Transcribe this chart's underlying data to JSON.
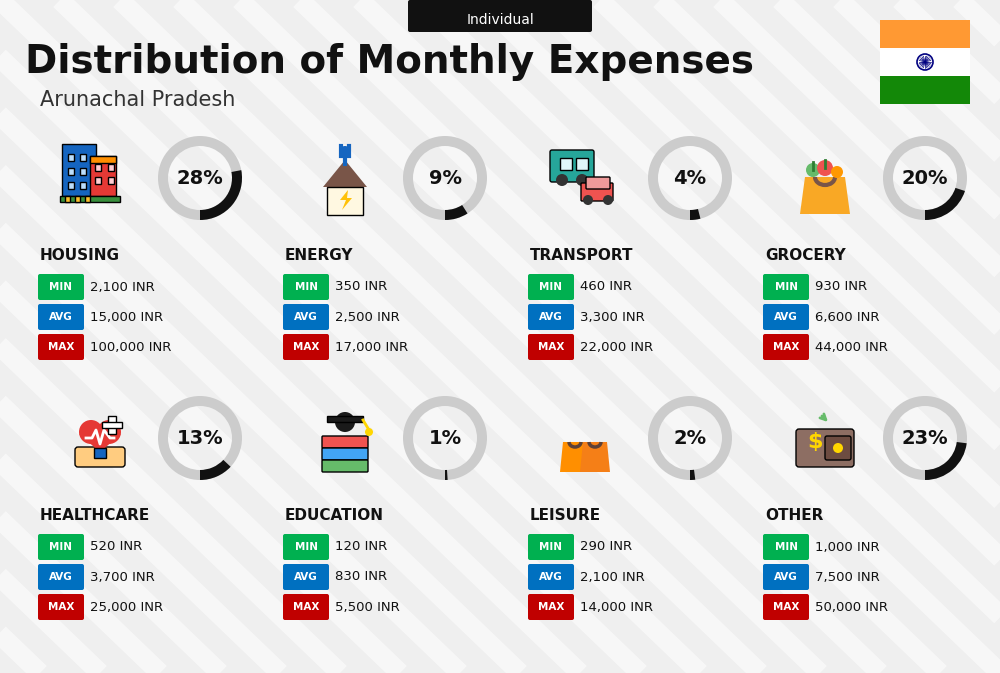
{
  "title": "Distribution of Monthly Expenses",
  "subtitle": "Arunachal Pradesh",
  "tag": "Individual",
  "bg_color": "#efefef",
  "categories": [
    {
      "name": "HOUSING",
      "pct": 28,
      "min_val": "2,100 INR",
      "avg_val": "15,000 INR",
      "max_val": "100,000 INR",
      "row": 0,
      "col": 0
    },
    {
      "name": "ENERGY",
      "pct": 9,
      "min_val": "350 INR",
      "avg_val": "2,500 INR",
      "max_val": "17,000 INR",
      "row": 0,
      "col": 1
    },
    {
      "name": "TRANSPORT",
      "pct": 4,
      "min_val": "460 INR",
      "avg_val": "3,300 INR",
      "max_val": "22,000 INR",
      "row": 0,
      "col": 2
    },
    {
      "name": "GROCERY",
      "pct": 20,
      "min_val": "930 INR",
      "avg_val": "6,600 INR",
      "max_val": "44,000 INR",
      "row": 0,
      "col": 3
    },
    {
      "name": "HEALTHCARE",
      "pct": 13,
      "min_val": "520 INR",
      "avg_val": "3,700 INR",
      "max_val": "25,000 INR",
      "row": 1,
      "col": 0
    },
    {
      "name": "EDUCATION",
      "pct": 1,
      "min_val": "120 INR",
      "avg_val": "830 INR",
      "max_val": "5,500 INR",
      "row": 1,
      "col": 1
    },
    {
      "name": "LEISURE",
      "pct": 2,
      "min_val": "290 INR",
      "avg_val": "2,100 INR",
      "max_val": "14,000 INR",
      "row": 1,
      "col": 2
    },
    {
      "name": "OTHER",
      "pct": 23,
      "min_val": "1,000 INR",
      "avg_val": "7,500 INR",
      "max_val": "50,000 INR",
      "row": 1,
      "col": 3
    }
  ],
  "min_color": "#00b050",
  "avg_color": "#0070c0",
  "max_color": "#c00000",
  "text_color": "#111111",
  "india_flag_orange": "#FF9933",
  "india_flag_green": "#138808",
  "india_flag_white": "#FFFFFF",
  "stripe_color": "#e8e8e8",
  "donut_bg": "#cccccc",
  "donut_fg": "#111111"
}
